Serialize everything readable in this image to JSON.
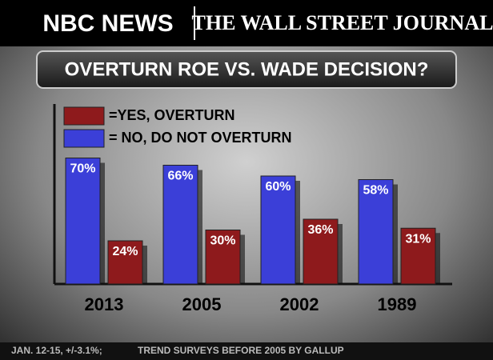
{
  "chart_data": {
    "type": "bar",
    "logos": [
      "NBC NEWS",
      "THE WALL STREET JOURNAL"
    ],
    "title": "OVERTURN ROE VS. WADE DECISION?",
    "categories": [
      "2013",
      "2005",
      "2002",
      "1989"
    ],
    "series": [
      {
        "name": "= NO, DO NOT OVERTURN",
        "color": "#3b3fd8",
        "values": [
          70,
          66,
          60,
          58
        ],
        "value_labels": [
          "70%",
          "66%",
          "60%",
          "58%"
        ]
      },
      {
        "name": "=YES, OVERTURN",
        "color": "#8e1a1c",
        "values": [
          24,
          30,
          36,
          31
        ],
        "value_labels": [
          "24%",
          "30%",
          "36%",
          "31%"
        ]
      }
    ],
    "notes": [
      "JAN. 12-15, +/-3.1%;",
      "TREND SURVEYS BEFORE 2005 BY GALLUP"
    ]
  }
}
